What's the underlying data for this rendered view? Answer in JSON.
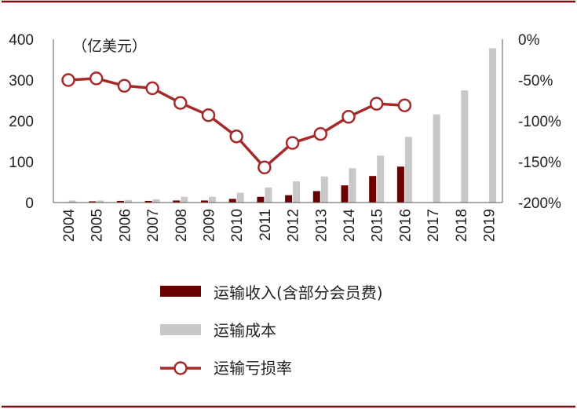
{
  "chart_data": {
    "type": "bar",
    "unit_label": "（亿美元）",
    "categories": [
      "2004",
      "2005",
      "2006",
      "2007",
      "2008",
      "2009",
      "2010",
      "2011",
      "2012",
      "2013",
      "2014",
      "2015",
      "2016",
      "2017",
      "2018",
      "2019"
    ],
    "left_axis": {
      "ylim": [
        0,
        400
      ],
      "ticks": [
        "0",
        "100",
        "200",
        "300",
        "400"
      ]
    },
    "right_axis": {
      "ylim": [
        -200,
        0
      ],
      "ticks": [
        "-200%",
        "-150%",
        "-100%",
        "-50%",
        "0%"
      ]
    },
    "series": [
      {
        "name": "运输收入(含部分会员费)",
        "type": "bar",
        "axis": "left",
        "color": "#6b0000",
        "values": [
          1,
          3,
          4,
          4,
          5,
          5,
          9,
          14,
          18,
          28,
          42,
          65,
          88,
          null,
          null,
          null
        ]
      },
      {
        "name": "运输成本",
        "type": "bar",
        "axis": "left",
        "color": "#c8c8c8",
        "values": [
          5,
          5,
          6,
          8,
          14,
          14,
          24,
          37,
          52,
          64,
          84,
          115,
          161,
          216,
          275,
          378
        ]
      },
      {
        "name": "运输亏损率",
        "type": "line",
        "axis": "right",
        "color": "#a52a2a",
        "values": [
          -50,
          -48,
          -57,
          -60,
          -78,
          -93,
          -119,
          -157,
          -127,
          -116,
          -95,
          -79,
          -81,
          null,
          null,
          null
        ]
      }
    ],
    "colors": {
      "frame": "#7b1010",
      "axis": "#555555"
    },
    "legend_position": "bottom"
  }
}
